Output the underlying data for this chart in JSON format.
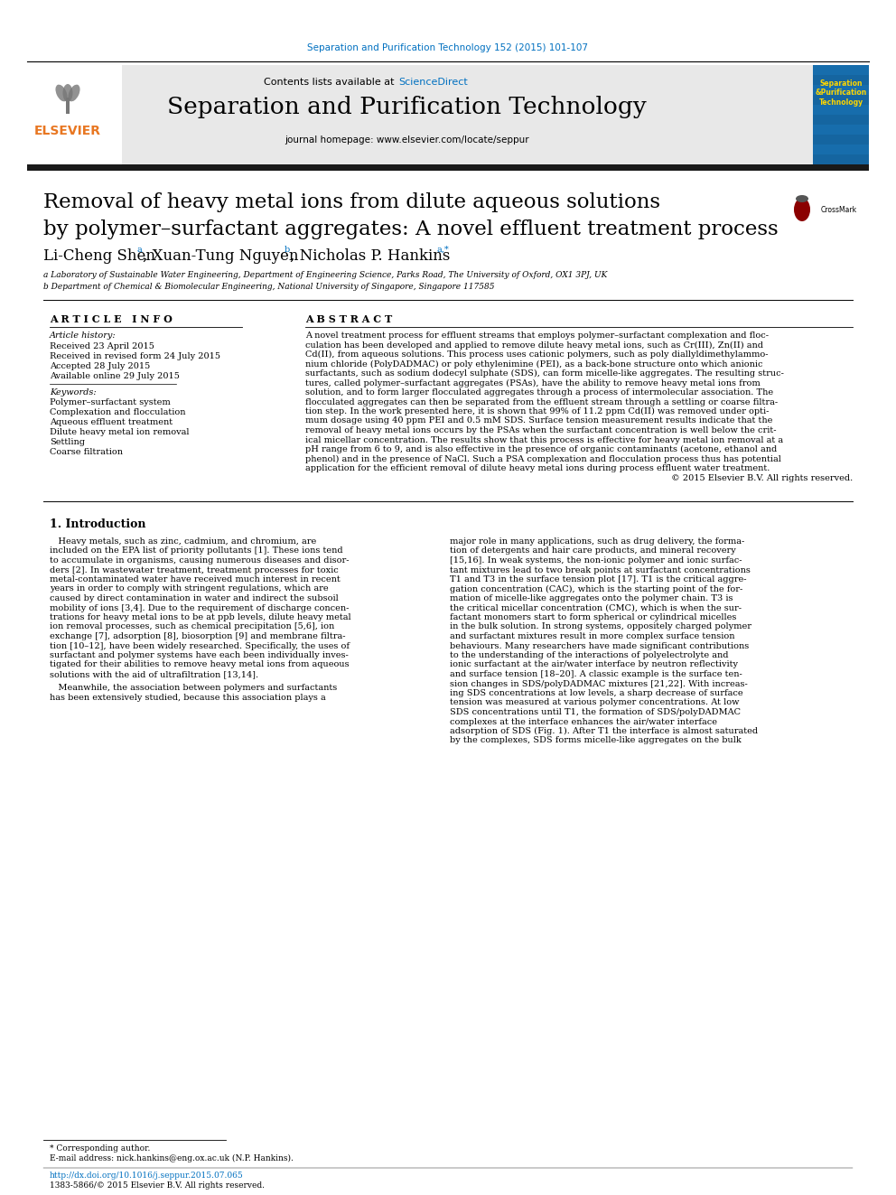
{
  "journal_ref": "Separation and Purification Technology 152 (2015) 101-107",
  "journal_name": "Separation and Purification Technology",
  "journal_homepage": "journal homepage: www.elsevier.com/locate/seppur",
  "contents_line": "Contents lists available at ScienceDirect",
  "title_line1": "Removal of heavy metal ions from dilute aqueous solutions",
  "title_line2": "by polymer–surfactant aggregates: A novel effluent treatment process",
  "affil_a": "a Laboratory of Sustainable Water Engineering, Department of Engineering Science, Parks Road, The University of Oxford, OX1 3PJ, UK",
  "affil_b": "b Department of Chemical & Biomolecular Engineering, National University of Singapore, Singapore 117585",
  "article_info_header": "A R T I C L E   I N F O",
  "abstract_header": "A B S T R A C T",
  "article_history_label": "Article history:",
  "received": "Received 23 April 2015",
  "revised": "Received in revised form 24 July 2015",
  "accepted": "Accepted 28 July 2015",
  "online": "Available online 29 July 2015",
  "keywords_label": "Keywords:",
  "keywords": [
    "Polymer–surfactant system",
    "Complexation and flocculation",
    "Aqueous effluent treatment",
    "Dilute heavy metal ion removal",
    "Settling",
    "Coarse filtration"
  ],
  "abstract_lines": [
    "A novel treatment process for effluent streams that employs polymer–surfactant complexation and floc-",
    "culation has been developed and applied to remove dilute heavy metal ions, such as Cr(III), Zn(II) and",
    "Cd(II), from aqueous solutions. This process uses cationic polymers, such as poly diallyldimethylammo-",
    "nium chloride (PolyDADMAC) or poly ethylenimine (PEI), as a back-bone structure onto which anionic",
    "surfactants, such as sodium dodecyl sulphate (SDS), can form micelle-like aggregates. The resulting struc-",
    "tures, called polymer–surfactant aggregates (PSAs), have the ability to remove heavy metal ions from",
    "solution, and to form larger flocculated aggregates through a process of intermolecular association. The",
    "flocculated aggregates can then be separated from the effluent stream through a settling or coarse filtra-",
    "tion step. In the work presented here, it is shown that 99% of 11.2 ppm Cd(II) was removed under opti-",
    "mum dosage using 40 ppm PEI and 0.5 mM SDS. Surface tension measurement results indicate that the",
    "removal of heavy metal ions occurs by the PSAs when the surfactant concentration is well below the crit-",
    "ical micellar concentration. The results show that this process is effective for heavy metal ion removal at a",
    "pH range from 6 to 9, and is also effective in the presence of organic contaminants (acetone, ethanol and",
    "phenol) and in the presence of NaCl. Such a PSA complexation and flocculation process thus has potential",
    "application for the efficient removal of dilute heavy metal ions during process effluent water treatment.",
    "© 2015 Elsevier B.V. All rights reserved."
  ],
  "intro_header": "1. Introduction",
  "intro_col1_lines": [
    "   Heavy metals, such as zinc, cadmium, and chromium, are",
    "included on the EPA list of priority pollutants [1]. These ions tend",
    "to accumulate in organisms, causing numerous diseases and disor-",
    "ders [2]. In wastewater treatment, treatment processes for toxic",
    "metal-contaminated water have received much interest in recent",
    "years in order to comply with stringent regulations, which are",
    "caused by direct contamination in water and indirect the subsoil",
    "mobility of ions [3,4]. Due to the requirement of discharge concen-",
    "trations for heavy metal ions to be at ppb levels, dilute heavy metal",
    "ion removal processes, such as chemical precipitation [5,6], ion",
    "exchange [7], adsorption [8], biosorption [9] and membrane filtra-",
    "tion [10–12], have been widely researched. Specifically, the uses of",
    "surfactant and polymer systems have each been individually inves-",
    "tigated for their abilities to remove heavy metal ions from aqueous",
    "solutions with the aid of ultrafiltration [13,14].",
    "",
    "   Meanwhile, the association between polymers and surfactants",
    "has been extensively studied, because this association plays a"
  ],
  "intro_col2_lines": [
    "major role in many applications, such as drug delivery, the forma-",
    "tion of detergents and hair care products, and mineral recovery",
    "[15,16]. In weak systems, the non-ionic polymer and ionic surfac-",
    "tant mixtures lead to two break points at surfactant concentrations",
    "T1 and T3 in the surface tension plot [17]. T1 is the critical aggre-",
    "gation concentration (CAC), which is the starting point of the for-",
    "mation of micelle-like aggregates onto the polymer chain. T3 is",
    "the critical micellar concentration (CMC), which is when the sur-",
    "factant monomers start to form spherical or cylindrical micelles",
    "in the bulk solution. In strong systems, oppositely charged polymer",
    "and surfactant mixtures result in more complex surface tension",
    "behaviours. Many researchers have made significant contributions",
    "to the understanding of the interactions of polyelectrolyte and",
    "ionic surfactant at the air/water interface by neutron reflectivity",
    "and surface tension [18–20]. A classic example is the surface ten-",
    "sion changes in SDS/polyDADMAC mixtures [21,22]. With increas-",
    "ing SDS concentrations at low levels, a sharp decrease of surface",
    "tension was measured at various polymer concentrations. At low",
    "SDS concentrations until T1, the formation of SDS/polyDADMAC",
    "complexes at the interface enhances the air/water interface",
    "adsorption of SDS (Fig. 1). After T1 the interface is almost saturated",
    "by the complexes, SDS forms micelle-like aggregates on the bulk"
  ],
  "corresponding": "* Corresponding author.",
  "email": "E-mail address: nick.hankins@eng.ox.ac.uk (N.P. Hankins).",
  "doi": "http://dx.doi.org/10.1016/j.seppur.2015.07.065",
  "issn": "1383-5866/© 2015 Elsevier B.V. All rights reserved.",
  "bg_color": "#FFFFFF",
  "header_gray": "#E8E8E8",
  "black_bar": "#1A1A1A",
  "link_blue": "#0070C0",
  "elsevier_orange": "#E87722",
  "cover_blue": "#1565A0",
  "cover_yellow": "#FFD700"
}
